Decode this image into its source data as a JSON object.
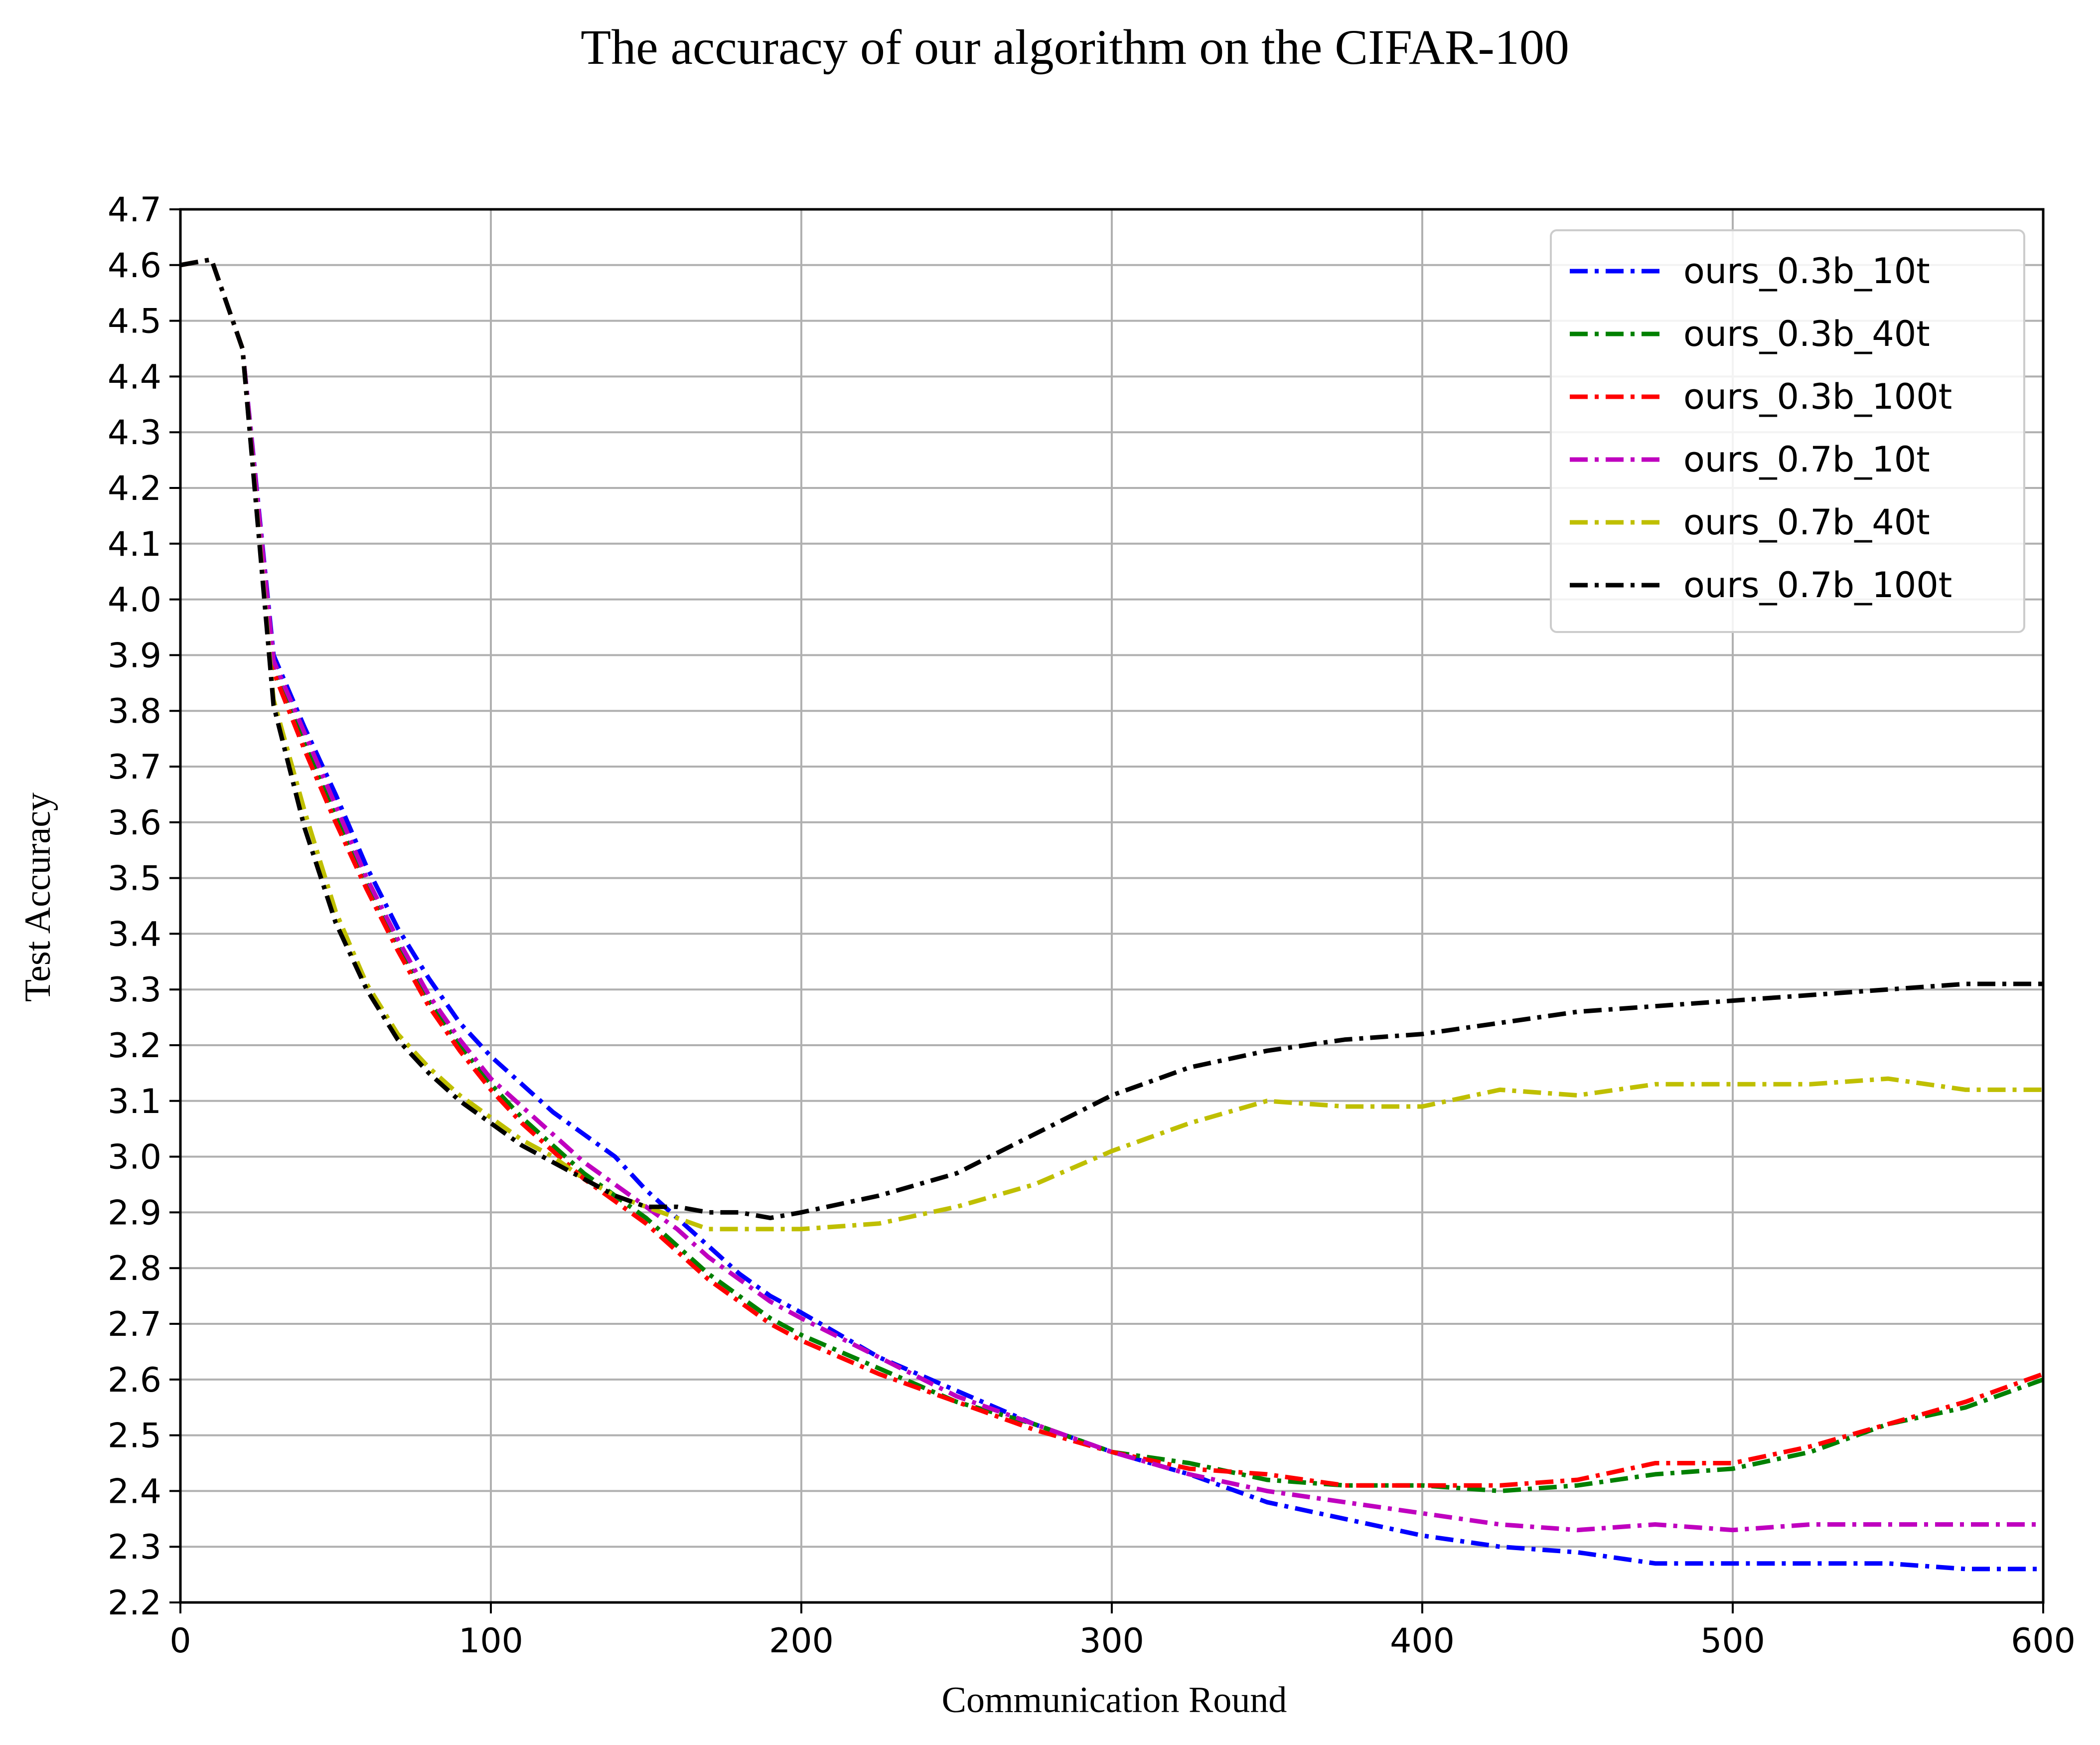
{
  "chart_data": {
    "type": "line",
    "title": "The accuracy of our algorithm on the CIFAR-100",
    "xlabel": "Communication Round",
    "ylabel": "Test Accuracy",
    "xlim": [
      0,
      600
    ],
    "ylim": [
      2.2,
      4.7
    ],
    "xticks": [
      0,
      100,
      200,
      300,
      400,
      500,
      600
    ],
    "yticks": [
      2.2,
      2.3,
      2.4,
      2.5,
      2.6,
      2.7,
      2.8,
      2.9,
      3.0,
      3.1,
      3.2,
      3.3,
      3.4,
      3.5,
      3.6,
      3.7,
      3.8,
      3.9,
      4.0,
      4.1,
      4.2,
      4.3,
      4.4,
      4.5,
      4.6,
      4.7
    ],
    "grid": true,
    "legend_position": "top-right",
    "line_style": "dash-dot",
    "x": [
      0,
      10,
      20,
      30,
      40,
      50,
      60,
      70,
      80,
      90,
      100,
      110,
      120,
      130,
      140,
      150,
      160,
      170,
      180,
      190,
      200,
      225,
      250,
      275,
      300,
      325,
      350,
      375,
      400,
      425,
      450,
      475,
      500,
      525,
      550,
      575,
      600
    ],
    "series": [
      {
        "name": "ours_0.3b_10t",
        "color": "#0000ff",
        "values": [
          4.6,
          4.61,
          4.45,
          3.9,
          3.77,
          3.65,
          3.52,
          3.41,
          3.32,
          3.24,
          3.18,
          3.13,
          3.08,
          3.04,
          3.0,
          2.94,
          2.89,
          2.84,
          2.79,
          2.75,
          2.72,
          2.64,
          2.58,
          2.52,
          2.47,
          2.43,
          2.38,
          2.35,
          2.32,
          2.3,
          2.29,
          2.27,
          2.27,
          2.27,
          2.27,
          2.26,
          2.26
        ]
      },
      {
        "name": "ours_0.3b_40t",
        "color": "#008000",
        "values": [
          4.6,
          4.61,
          4.45,
          3.88,
          3.74,
          3.61,
          3.49,
          3.38,
          3.28,
          3.2,
          3.13,
          3.07,
          3.02,
          2.97,
          2.93,
          2.89,
          2.84,
          2.79,
          2.75,
          2.71,
          2.68,
          2.62,
          2.56,
          2.52,
          2.47,
          2.45,
          2.42,
          2.41,
          2.41,
          2.4,
          2.41,
          2.43,
          2.44,
          2.47,
          2.52,
          2.55,
          2.6
        ]
      },
      {
        "name": "ours_0.3b_100t",
        "color": "#ff0000",
        "values": [
          4.6,
          4.61,
          4.45,
          3.87,
          3.73,
          3.6,
          3.48,
          3.37,
          3.27,
          3.19,
          3.12,
          3.06,
          3.01,
          2.96,
          2.92,
          2.88,
          2.83,
          2.78,
          2.74,
          2.7,
          2.67,
          2.61,
          2.56,
          2.51,
          2.47,
          2.44,
          2.43,
          2.41,
          2.41,
          2.41,
          2.42,
          2.45,
          2.45,
          2.48,
          2.52,
          2.56,
          2.61
        ]
      },
      {
        "name": "ours_0.7b_10t",
        "color": "#bf00bf",
        "values": [
          4.6,
          4.61,
          4.45,
          3.89,
          3.76,
          3.63,
          3.5,
          3.39,
          3.29,
          3.21,
          3.14,
          3.09,
          3.04,
          2.99,
          2.95,
          2.91,
          2.87,
          2.82,
          2.78,
          2.74,
          2.71,
          2.64,
          2.57,
          2.52,
          2.47,
          2.43,
          2.4,
          2.38,
          2.36,
          2.34,
          2.33,
          2.34,
          2.33,
          2.34,
          2.34,
          2.34,
          2.34
        ]
      },
      {
        "name": "ours_0.7b_40t",
        "color": "#bfbf00",
        "values": [
          4.6,
          4.61,
          4.45,
          3.82,
          3.62,
          3.44,
          3.31,
          3.22,
          3.16,
          3.11,
          3.07,
          3.03,
          3.0,
          2.96,
          2.93,
          2.91,
          2.89,
          2.87,
          2.87,
          2.87,
          2.87,
          2.88,
          2.91,
          2.95,
          3.01,
          3.06,
          3.1,
          3.09,
          3.09,
          3.12,
          3.11,
          3.13,
          3.13,
          3.13,
          3.14,
          3.12,
          3.12
        ]
      },
      {
        "name": "ours_0.7b_100t",
        "color": "#000000",
        "values": [
          4.6,
          4.61,
          4.45,
          3.81,
          3.59,
          3.42,
          3.3,
          3.21,
          3.15,
          3.1,
          3.06,
          3.02,
          2.99,
          2.96,
          2.93,
          2.91,
          2.91,
          2.9,
          2.9,
          2.89,
          2.9,
          2.93,
          2.97,
          3.04,
          3.11,
          3.16,
          3.19,
          3.21,
          3.22,
          3.24,
          3.26,
          3.27,
          3.28,
          3.29,
          3.3,
          3.31,
          3.31
        ]
      }
    ]
  }
}
